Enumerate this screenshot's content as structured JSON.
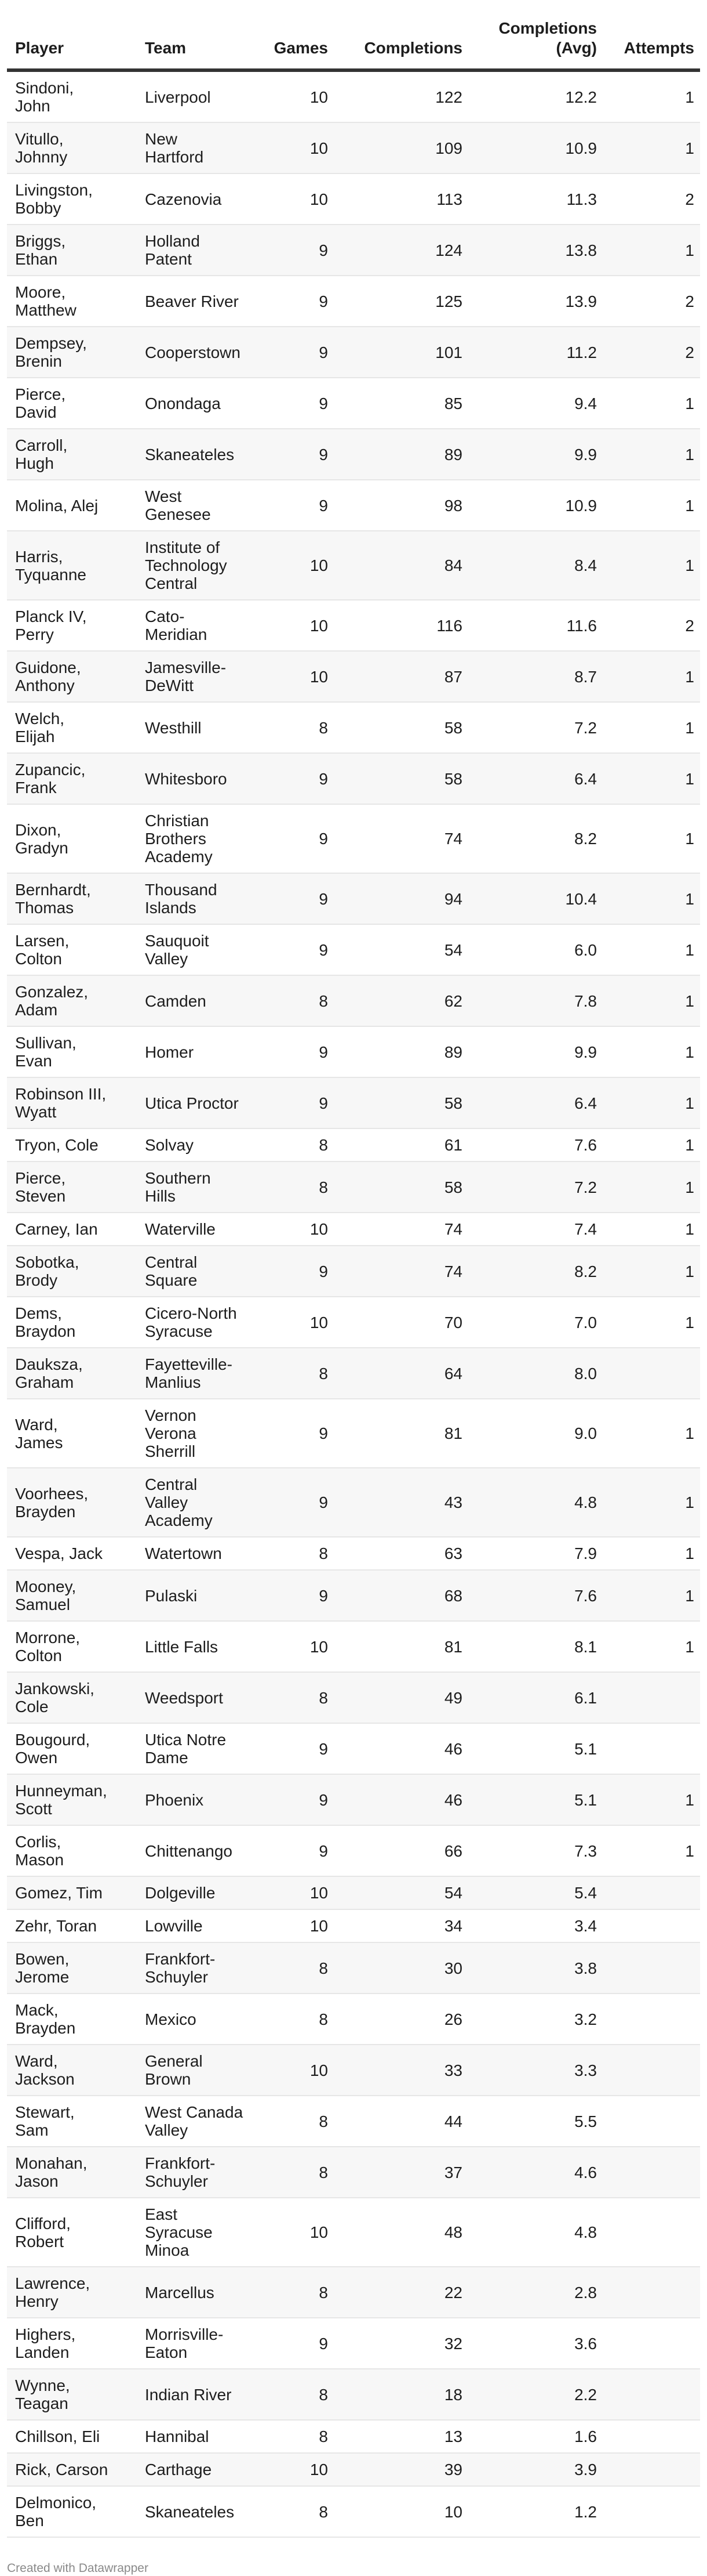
{
  "columns": [
    "Player",
    "Team",
    "Games",
    "Completions",
    "Completions\n(Avg)",
    "Attempts"
  ],
  "rows": [
    [
      "Sindoni,\nJohn",
      "Liverpool",
      "10",
      "122",
      "12.2",
      "1"
    ],
    [
      "Vitullo,\nJohnny",
      "New\nHartford",
      "10",
      "109",
      "10.9",
      "1"
    ],
    [
      "Livingston,\nBobby",
      "Cazenovia",
      "10",
      "113",
      "11.3",
      "2"
    ],
    [
      "Briggs,\nEthan",
      "Holland\nPatent",
      "9",
      "124",
      "13.8",
      "1"
    ],
    [
      "Moore,\nMatthew",
      "Beaver River",
      "9",
      "125",
      "13.9",
      "2"
    ],
    [
      "Dempsey,\nBrenin",
      "Cooperstown",
      "9",
      "101",
      "11.2",
      "2"
    ],
    [
      "Pierce,\nDavid",
      "Onondaga",
      "9",
      "85",
      "9.4",
      "1"
    ],
    [
      "Carroll,\nHugh",
      "Skaneateles",
      "9",
      "89",
      "9.9",
      "1"
    ],
    [
      "Molina, Alej",
      "West\nGenesee",
      "9",
      "98",
      "10.9",
      "1"
    ],
    [
      "Harris,\nTyquanne",
      "Institute of\nTechnology\nCentral",
      "10",
      "84",
      "8.4",
      "1"
    ],
    [
      "Planck IV,\nPerry",
      "Cato-\nMeridian",
      "10",
      "116",
      "11.6",
      "2"
    ],
    [
      "Guidone,\nAnthony",
      "Jamesville-\nDeWitt",
      "10",
      "87",
      "8.7",
      "1"
    ],
    [
      "Welch,\nElijah",
      "Westhill",
      "8",
      "58",
      "7.2",
      "1"
    ],
    [
      "Zupancic,\nFrank",
      "Whitesboro",
      "9",
      "58",
      "6.4",
      "1"
    ],
    [
      "Dixon,\nGradyn",
      "Christian\nBrothers\nAcademy",
      "9",
      "74",
      "8.2",
      "1"
    ],
    [
      "Bernhardt,\nThomas",
      "Thousand\nIslands",
      "9",
      "94",
      "10.4",
      "1"
    ],
    [
      "Larsen,\nColton",
      "Sauquoit\nValley",
      "9",
      "54",
      "6.0",
      "1"
    ],
    [
      "Gonzalez,\nAdam",
      "Camden",
      "8",
      "62",
      "7.8",
      "1"
    ],
    [
      "Sullivan,\nEvan",
      "Homer",
      "9",
      "89",
      "9.9",
      "1"
    ],
    [
      "Robinson III,\nWyatt",
      "Utica Proctor",
      "9",
      "58",
      "6.4",
      "1"
    ],
    [
      "Tryon, Cole",
      "Solvay",
      "8",
      "61",
      "7.6",
      "1"
    ],
    [
      "Pierce,\nSteven",
      "Southern\nHills",
      "8",
      "58",
      "7.2",
      "1"
    ],
    [
      "Carney, Ian",
      "Waterville",
      "10",
      "74",
      "7.4",
      "1"
    ],
    [
      "Sobotka,\nBrody",
      "Central\nSquare",
      "9",
      "74",
      "8.2",
      "1"
    ],
    [
      "Dems,\nBraydon",
      "Cicero-North\nSyracuse",
      "10",
      "70",
      "7.0",
      "1"
    ],
    [
      "Dauksza,\nGraham",
      "Fayetteville-\nManlius",
      "8",
      "64",
      "8.0",
      ""
    ],
    [
      "Ward,\nJames",
      "Vernon\nVerona\nSherrill",
      "9",
      "81",
      "9.0",
      "1"
    ],
    [
      "Voorhees,\nBrayden",
      "Central\nValley\nAcademy",
      "9",
      "43",
      "4.8",
      "1"
    ],
    [
      "Vespa, Jack",
      "Watertown",
      "8",
      "63",
      "7.9",
      "1"
    ],
    [
      "Mooney,\nSamuel",
      "Pulaski",
      "9",
      "68",
      "7.6",
      "1"
    ],
    [
      "Morrone,\nColton",
      "Little Falls",
      "10",
      "81",
      "8.1",
      "1"
    ],
    [
      "Jankowski,\nCole",
      "Weedsport",
      "8",
      "49",
      "6.1",
      ""
    ],
    [
      "Bougourd,\nOwen",
      "Utica Notre\nDame",
      "9",
      "46",
      "5.1",
      ""
    ],
    [
      "Hunneyman,\nScott",
      "Phoenix",
      "9",
      "46",
      "5.1",
      "1"
    ],
    [
      "Corlis,\nMason",
      "Chittenango",
      "9",
      "66",
      "7.3",
      "1"
    ],
    [
      "Gomez, Tim",
      "Dolgeville",
      "10",
      "54",
      "5.4",
      ""
    ],
    [
      "Zehr, Toran",
      "Lowville",
      "10",
      "34",
      "3.4",
      ""
    ],
    [
      "Bowen,\nJerome",
      "Frankfort-\nSchuyler",
      "8",
      "30",
      "3.8",
      ""
    ],
    [
      "Mack,\nBrayden",
      "Mexico",
      "8",
      "26",
      "3.2",
      ""
    ],
    [
      "Ward,\nJackson",
      "General\nBrown",
      "10",
      "33",
      "3.3",
      ""
    ],
    [
      "Stewart,\nSam",
      "West Canada\nValley",
      "8",
      "44",
      "5.5",
      ""
    ],
    [
      "Monahan,\nJason",
      "Frankfort-\nSchuyler",
      "8",
      "37",
      "4.6",
      ""
    ],
    [
      "Clifford,\nRobert",
      "East\nSyracuse\nMinoa",
      "10",
      "48",
      "4.8",
      ""
    ],
    [
      "Lawrence,\nHenry",
      "Marcellus",
      "8",
      "22",
      "2.8",
      ""
    ],
    [
      "Highers,\nLanden",
      "Morrisville-\nEaton",
      "9",
      "32",
      "3.6",
      ""
    ],
    [
      "Wynne,\nTeagan",
      "Indian River",
      "8",
      "18",
      "2.2",
      ""
    ],
    [
      "Chillson, Eli",
      "Hannibal",
      "8",
      "13",
      "1.6",
      ""
    ],
    [
      "Rick, Carson",
      "Carthage",
      "10",
      "39",
      "3.9",
      ""
    ],
    [
      "Delmonico,\nBen",
      "Skaneateles",
      "8",
      "10",
      "1.2",
      ""
    ]
  ],
  "footer": "Created with Datawrapper"
}
